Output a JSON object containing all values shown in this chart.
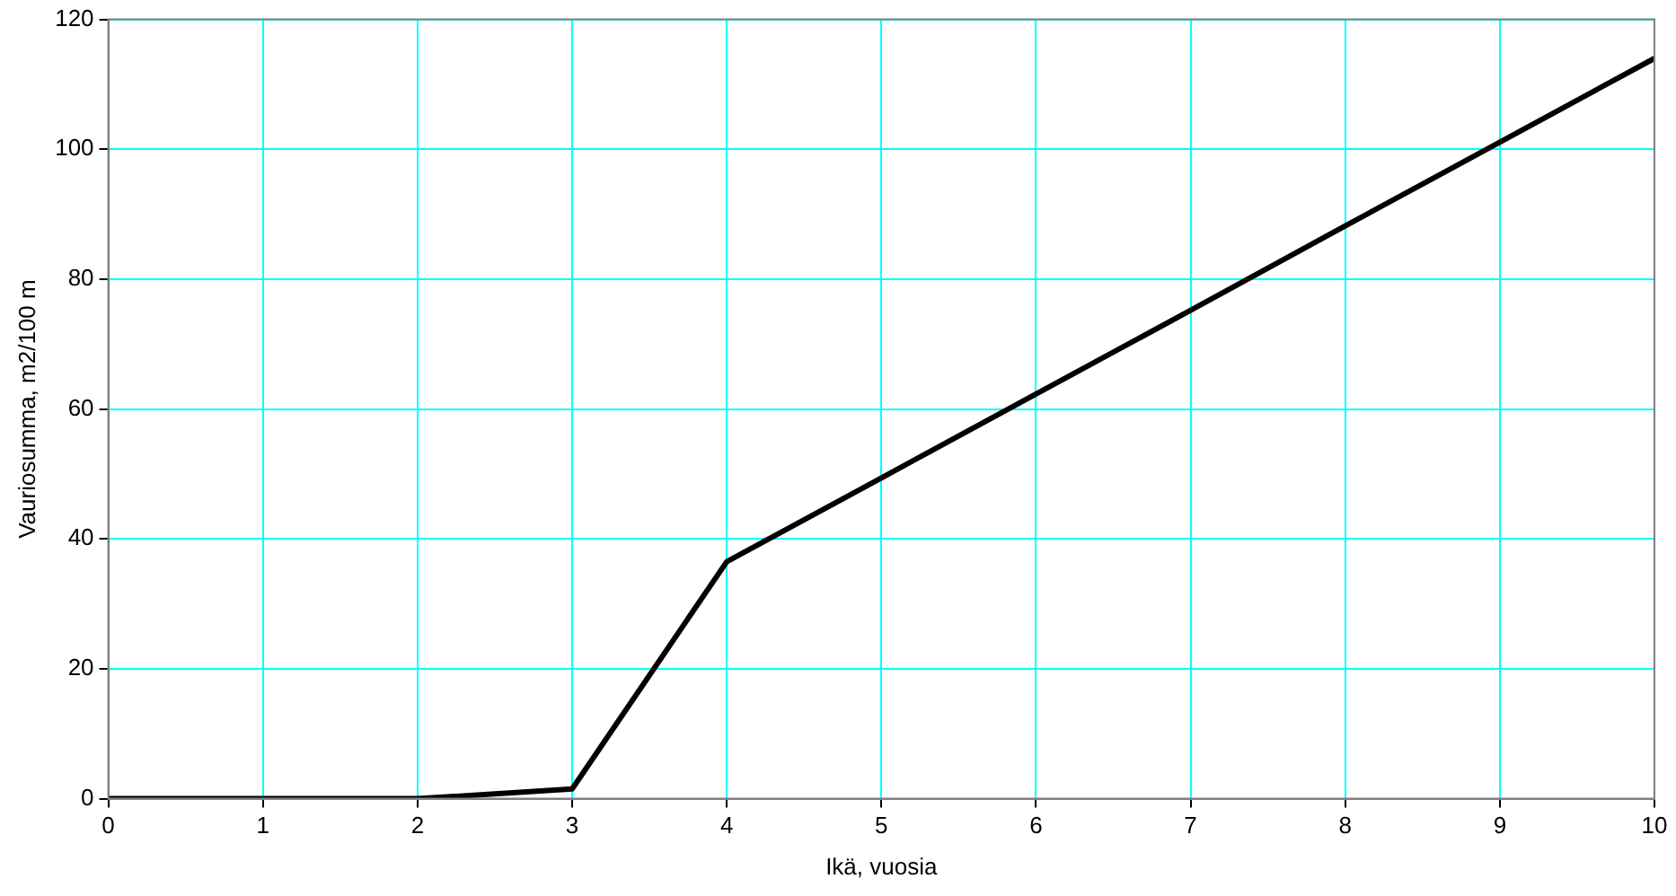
{
  "chart_data": {
    "type": "line",
    "xlabel": "Ikä, vuosia",
    "ylabel": "Vauriosumma, m2/100 m",
    "x": [
      0,
      1,
      2,
      3,
      4,
      5,
      6,
      7,
      8,
      9,
      10
    ],
    "series": [
      {
        "color": "#000000",
        "values": [
          0,
          0,
          0,
          1.5,
          36.5,
          49.4,
          62.3,
          75.2,
          88.2,
          101.1,
          114
        ]
      }
    ],
    "xlim": [
      0,
      10
    ],
    "xticks": [
      0,
      1,
      2,
      3,
      4,
      5,
      6,
      7,
      8,
      9,
      10
    ],
    "ylim": [
      0,
      120
    ],
    "yticks": [
      0,
      20,
      40,
      60,
      80,
      100,
      120
    ],
    "grid": true,
    "legend": false,
    "marker": "none",
    "line_style": "solid"
  }
}
